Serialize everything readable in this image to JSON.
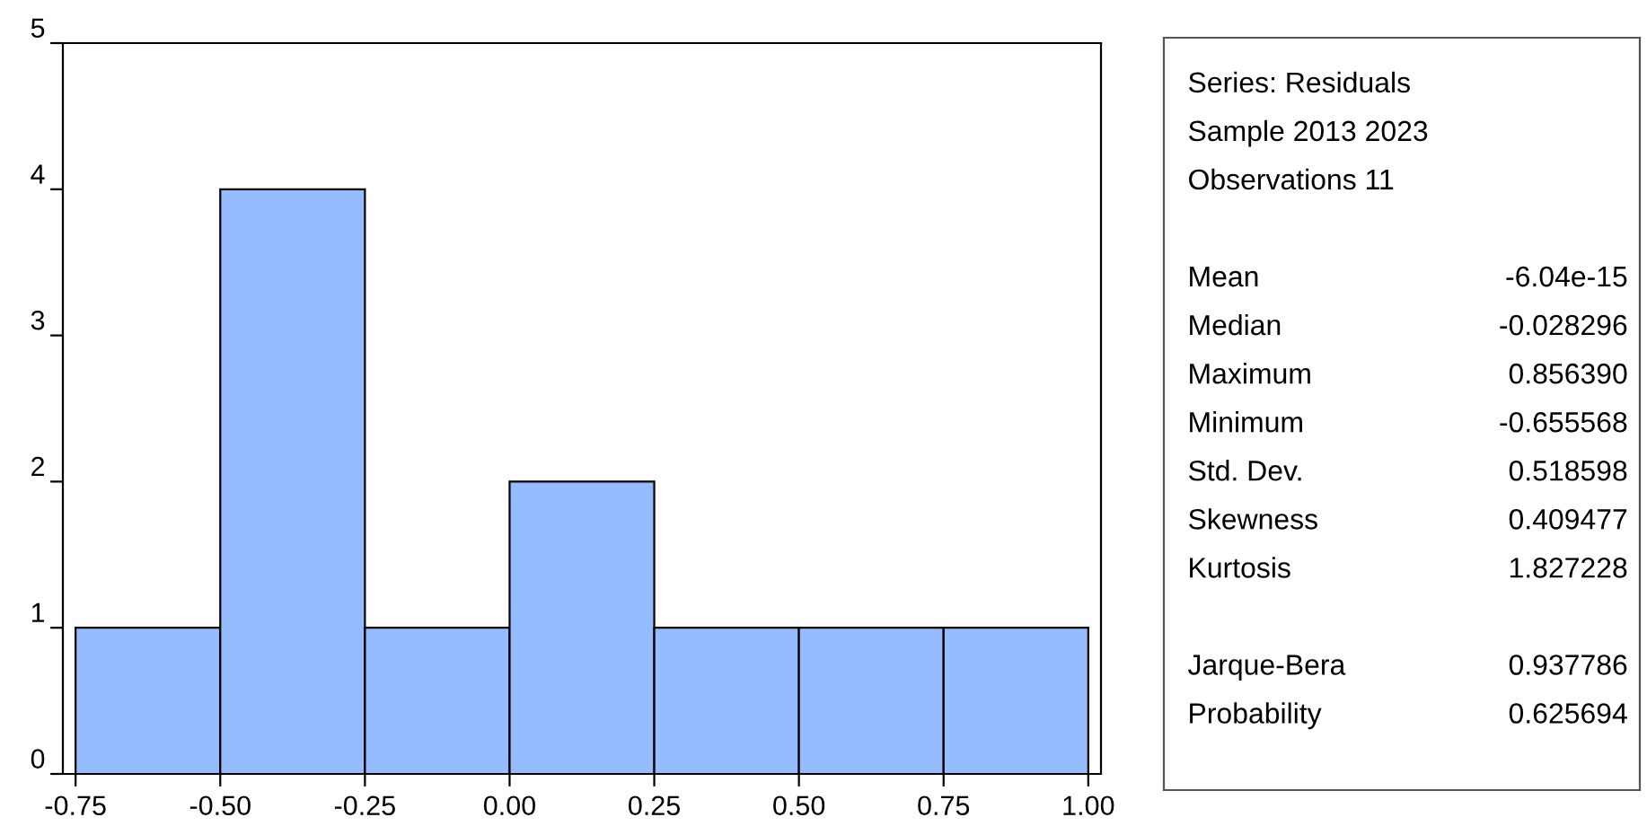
{
  "chart_data": {
    "type": "histogram",
    "bins": [
      -0.75,
      -0.5,
      -0.25,
      0.0,
      0.25,
      0.5,
      0.75,
      1.0
    ],
    "values": [
      1,
      4,
      1,
      2,
      1,
      1,
      1
    ],
    "color": "#94bcff",
    "xlim": [
      -0.772,
      1.022
    ],
    "xticks": [
      {
        "value": -0.75,
        "label": "-0.75"
      },
      {
        "value": -0.5,
        "label": "-0.50"
      },
      {
        "value": -0.25,
        "label": "-0.25"
      },
      {
        "value": 0.0,
        "label": "0.00"
      },
      {
        "value": 0.25,
        "label": "0.25"
      },
      {
        "value": 0.5,
        "label": "0.50"
      },
      {
        "value": 0.75,
        "label": "0.75"
      },
      {
        "value": 1.0,
        "label": "1.00"
      }
    ],
    "ylim": [
      0,
      5
    ],
    "yticks": [
      0,
      1,
      2,
      3,
      4,
      5
    ],
    "grid": false,
    "annotations": [
      "Series: Residuals",
      "Sample 2013 2023",
      "Observations 11",
      "Mean",
      "-6.04e-15",
      "Median",
      "-0.028296",
      "Maximum",
      "0.856390",
      "Minimum",
      "-0.655568",
      "Std. Dev.",
      "0.518598",
      "Skewness",
      "0.409477",
      "Kurtosis",
      "1.827228",
      "Jarque-Bera",
      "0.937786",
      "Probability",
      "0.625694"
    ]
  }
}
